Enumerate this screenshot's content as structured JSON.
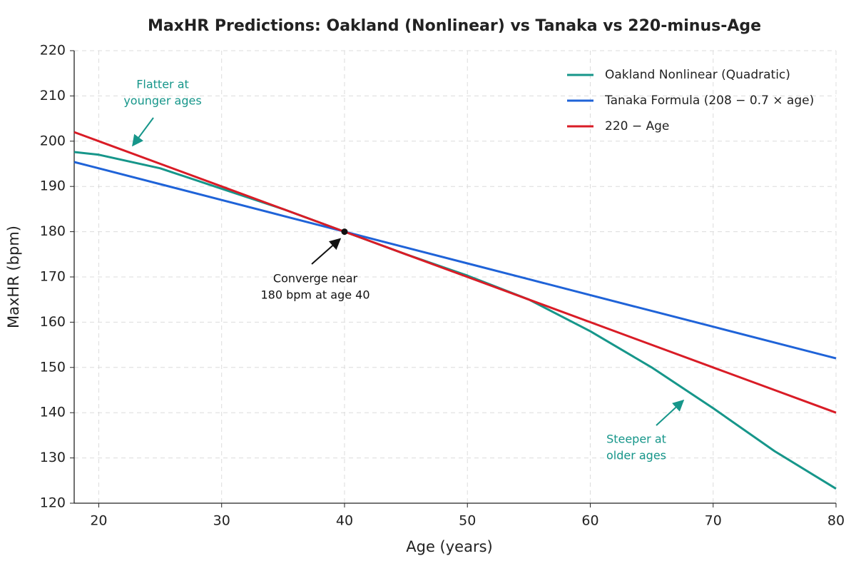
{
  "chart_data": {
    "type": "line",
    "title": "MaxHR Predictions: Oakland (Nonlinear) vs Tanaka vs 220-minus-Age",
    "x_label": "Age (years)",
    "y_label": "MaxHR (bpm)",
    "x": [
      18,
      20,
      25,
      30,
      35,
      40,
      45,
      50,
      55,
      60,
      65,
      70,
      75,
      80
    ],
    "series": [
      {
        "name": "Oakland Nonlinear (Quadratic)",
        "color": "#16968a",
        "values": [
          197.6,
          197,
          194,
          189.5,
          185,
          180,
          175,
          170.3,
          165,
          158,
          150,
          141,
          131.5,
          123.2
        ]
      },
      {
        "name": "Tanaka Formula (208 − 0.7 × age)",
        "color": "#1f63d8",
        "values": [
          195.4,
          194,
          190.5,
          187,
          183.5,
          180,
          176.5,
          173,
          169.5,
          166,
          162.5,
          159,
          155.5,
          152
        ]
      },
      {
        "name": "220 − Age",
        "color": "#d91c26",
        "values": [
          202,
          200,
          195,
          190,
          185,
          180,
          175,
          170,
          165,
          160,
          155,
          150,
          145,
          140
        ]
      }
    ],
    "xlim": [
      18,
      80
    ],
    "ylim": [
      120,
      220
    ],
    "xticks": [
      20,
      30,
      40,
      50,
      60,
      70,
      80
    ],
    "yticks": [
      120,
      130,
      140,
      150,
      160,
      170,
      180,
      190,
      200,
      210,
      220
    ],
    "grid": true,
    "legend": "upper right",
    "point": {
      "x": 40,
      "y": 180
    },
    "annotations": [
      {
        "lines": [
          "Flatter at",
          "younger ages"
        ],
        "color": "#16968a"
      },
      {
        "lines": [
          "Converge near",
          "180 bpm at age 40"
        ],
        "color": "#111111"
      },
      {
        "lines": [
          "Steeper at",
          "older ages"
        ],
        "color": "#16968a"
      }
    ]
  }
}
